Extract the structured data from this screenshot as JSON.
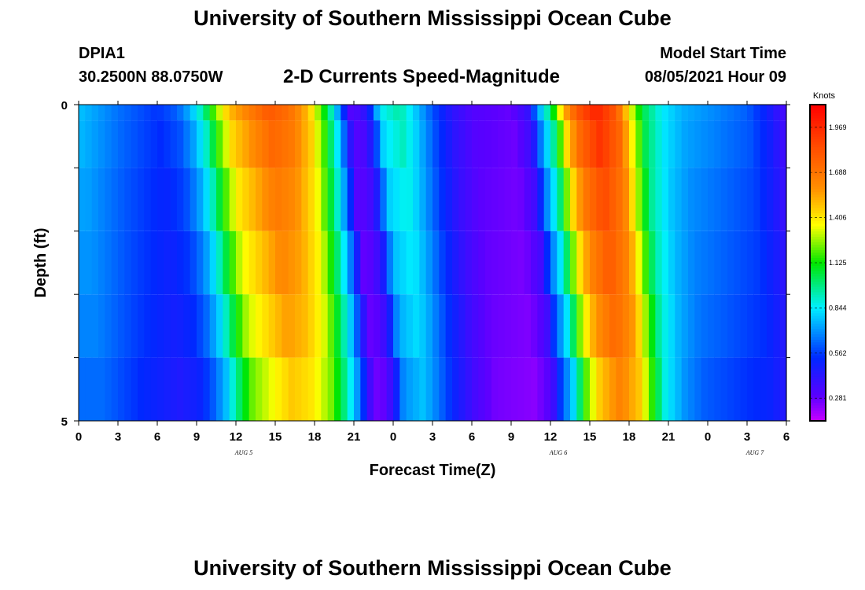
{
  "header": {
    "title": "University of Southern Mississippi Ocean Cube",
    "station": "DPIA1",
    "coordinates": "30.2500N  88.0750W",
    "subtitle": "2-D Currents Speed-Magnitude",
    "start_label": "Model Start Time",
    "start_value": "08/05/2021 Hour 09"
  },
  "footer": {
    "title": "University of Southern Mississippi Ocean Cube"
  },
  "chart_data": {
    "type": "heatmap",
    "xlabel": "Forecast Time(Z)",
    "ylabel": "Depth (ft)",
    "x_tick_labels": [
      "0",
      "3",
      "6",
      "9",
      "12",
      "15",
      "18",
      "21",
      "0",
      "3",
      "6",
      "9",
      "12",
      "15",
      "18",
      "21",
      "0",
      "3",
      "6"
    ],
    "x_range_hours": [
      0,
      54
    ],
    "date_labels": [
      {
        "hour": 12,
        "label": "AUG 5"
      },
      {
        "hour": 36,
        "label": "AUG 6"
      },
      {
        "hour": 51,
        "label": "AUG 7"
      }
    ],
    "y_tick_labels": [
      "0",
      "5"
    ],
    "y_range_ft": [
      0,
      5
    ],
    "depth_layers_ft": [
      0,
      0.5,
      1.5,
      2.5,
      3.5,
      4.5
    ],
    "colorbar": {
      "unit": "Knots",
      "range": [
        0.14,
        2.11
      ],
      "ticks": [
        0.281,
        0.562,
        0.844,
        1.125,
        1.406,
        1.688,
        1.969
      ],
      "tick_labels": [
        "0.281",
        "0.562",
        "0.844",
        "1.125",
        "1.406",
        "1.688",
        "1.969"
      ]
    },
    "speed_surface_knots": [
      {
        "hour": 0,
        "v": 0.78
      },
      {
        "hour": 3,
        "v": 0.65
      },
      {
        "hour": 6,
        "v": 0.55
      },
      {
        "hour": 7.5,
        "v": 0.62
      },
      {
        "hour": 8.5,
        "v": 0.75
      },
      {
        "hour": 9.5,
        "v": 0.95
      },
      {
        "hour": 10.5,
        "v": 1.25
      },
      {
        "hour": 11.5,
        "v": 1.5
      },
      {
        "hour": 13,
        "v": 1.65
      },
      {
        "hour": 14.5,
        "v": 1.8
      },
      {
        "hour": 16,
        "v": 1.72
      },
      {
        "hour": 17.5,
        "v": 1.5
      },
      {
        "hour": 18.5,
        "v": 1.2
      },
      {
        "hour": 19.5,
        "v": 0.85
      },
      {
        "hour": 20.2,
        "v": 0.55
      },
      {
        "hour": 20.7,
        "v": 0.32
      },
      {
        "hour": 21.5,
        "v": 0.35
      },
      {
        "hour": 22.2,
        "v": 0.5
      },
      {
        "hour": 23,
        "v": 0.85
      },
      {
        "hour": 24.5,
        "v": 0.95
      },
      {
        "hour": 25.5,
        "v": 0.82
      },
      {
        "hour": 27,
        "v": 0.6
      },
      {
        "hour": 28.5,
        "v": 0.42
      },
      {
        "hour": 30,
        "v": 0.32
      },
      {
        "hour": 33,
        "v": 0.28
      },
      {
        "hour": 34.3,
        "v": 0.4
      },
      {
        "hour": 35,
        "v": 0.7
      },
      {
        "hour": 36,
        "v": 1.0
      },
      {
        "hour": 37,
        "v": 1.5
      },
      {
        "hour": 38,
        "v": 1.8
      },
      {
        "hour": 39.5,
        "v": 2.0
      },
      {
        "hour": 41,
        "v": 1.8
      },
      {
        "hour": 42,
        "v": 1.4
      },
      {
        "hour": 43,
        "v": 1.05
      },
      {
        "hour": 44.5,
        "v": 0.85
      },
      {
        "hour": 46,
        "v": 0.75
      },
      {
        "hour": 48,
        "v": 0.7
      },
      {
        "hour": 51,
        "v": 0.62
      },
      {
        "hour": 52.5,
        "v": 0.5
      },
      {
        "hour": 53.5,
        "v": 0.38
      },
      {
        "hour": 54,
        "v": 0.35
      }
    ],
    "layer_scale": [
      1.0,
      0.97,
      0.93,
      0.9,
      0.87,
      0.82
    ],
    "layer_time_shift_hours": [
      0,
      0.3,
      0.6,
      1.0,
      1.4,
      1.8
    ]
  }
}
